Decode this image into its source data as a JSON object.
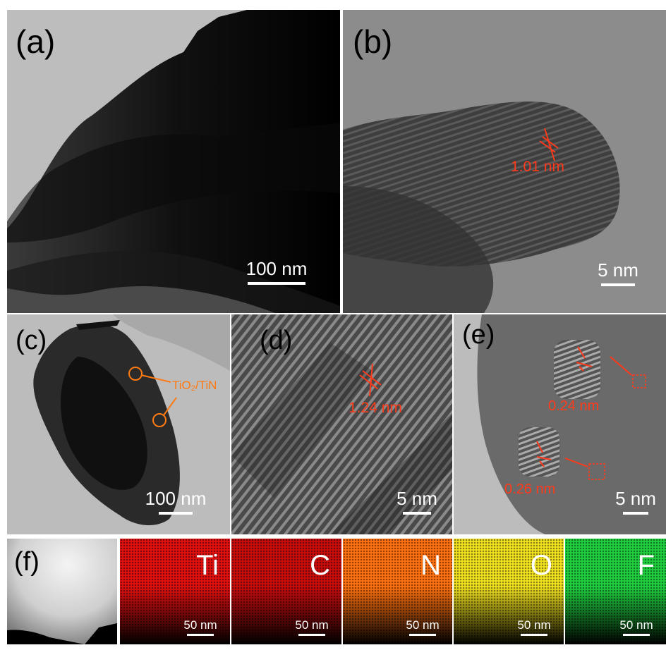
{
  "panels": {
    "a": {
      "label": "(a)",
      "scale": "100 nm"
    },
    "b": {
      "label": "(b)",
      "scale": "5 nm",
      "spacing": "1.01 nm"
    },
    "c": {
      "label": "(c)",
      "scale": "100 nm",
      "annotation_main": "TiO",
      "annotation_sub": "2",
      "annotation_rest": "/TiN"
    },
    "d": {
      "label": "(d)",
      "scale": "5 nm",
      "spacing": "1.24 nm"
    },
    "e": {
      "label": "(e)",
      "scale": "5 nm",
      "spacing_top": "0.24 nm",
      "spacing_bottom": "0.26 nm"
    },
    "f": {
      "label": "(f)"
    }
  },
  "eds_maps": [
    {
      "element": "Ti",
      "scale": "50 nm",
      "color": "#e01010"
    },
    {
      "element": "C",
      "scale": "50 nm",
      "color": "#c80c0c"
    },
    {
      "element": "N",
      "scale": "50 nm",
      "color": "#ff7010"
    },
    {
      "element": "O",
      "scale": "50 nm",
      "color": "#f0e020"
    },
    {
      "element": "F",
      "scale": "50 nm",
      "color": "#20d040"
    }
  ],
  "colors": {
    "annotation_red": "#ff3a1a",
    "annotation_orange": "#ff7a12"
  }
}
